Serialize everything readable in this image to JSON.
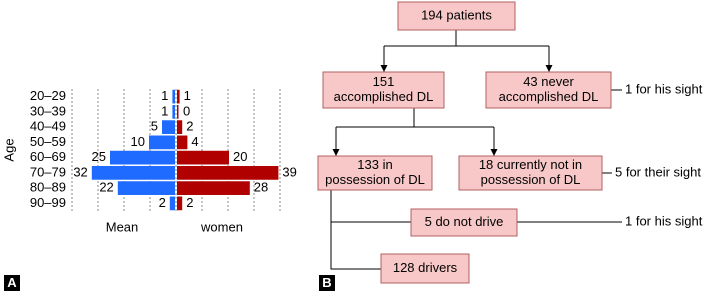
{
  "chart_data": {
    "type": "pyramid",
    "categories": [
      "20–29",
      "30–39",
      "40–49",
      "50–59",
      "60–69",
      "70–79",
      "80–89",
      "90–99"
    ],
    "ylabel": "Age",
    "series": [
      {
        "name": "Mean",
        "color": "#1f6bff",
        "values": [
          1,
          1,
          5,
          10,
          25,
          32,
          22,
          2
        ]
      },
      {
        "name": "women",
        "color": "#b00000",
        "values": [
          1,
          0,
          2,
          4,
          20,
          39,
          28,
          2
        ]
      }
    ],
    "xlim": [
      -40,
      40
    ],
    "xticks": [
      -40,
      -30,
      -20,
      -10,
      0,
      10,
      20,
      30,
      40
    ],
    "grid": true
  },
  "panels": [
    "A",
    "B"
  ],
  "diagram": {
    "nodes": [
      {
        "lines": [
          "194 patients"
        ]
      },
      {
        "lines": [
          "151",
          "accomplished DL"
        ]
      },
      {
        "lines": [
          "43 never",
          "accomplished DL"
        ]
      },
      {
        "lines": [
          "133 in",
          "possession of DL"
        ]
      },
      {
        "lines": [
          "18 currently not in",
          "possession of DL"
        ]
      },
      {
        "lines": [
          "5 do not drive"
        ]
      },
      {
        "lines": [
          "128 drivers"
        ]
      }
    ],
    "notes": [
      "1 for his sight",
      "5 for their sight",
      "1 for his sight"
    ]
  }
}
